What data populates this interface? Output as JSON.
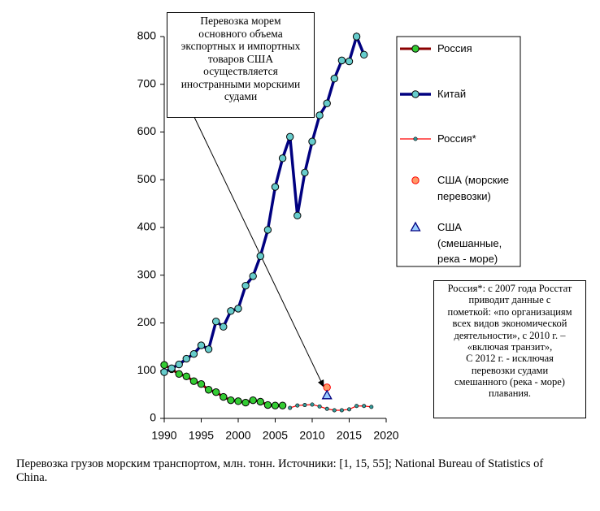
{
  "chart_data": {
    "type": "line",
    "x": [
      1990,
      1991,
      1992,
      1993,
      1994,
      1995,
      1996,
      1997,
      1998,
      1999,
      2000,
      2001,
      2002,
      2003,
      2004,
      2005,
      2006,
      2007,
      2008,
      2009,
      2010,
      2011,
      2012,
      2013,
      2014,
      2015,
      2016,
      2017,
      2018
    ],
    "series": [
      {
        "name": "Россия",
        "color": "#8b0000",
        "marker": "circle",
        "marker_color": "#33cc33",
        "line": true,
        "values": [
          112,
          103,
          93,
          88,
          78,
          72,
          60,
          55,
          45,
          38,
          36,
          33,
          38,
          35,
          28,
          27,
          27,
          null,
          null,
          null,
          null,
          null,
          null,
          null,
          null,
          null,
          null,
          null,
          null
        ]
      },
      {
        "name": "Китай",
        "color": "#000080",
        "marker": "circle",
        "marker_color": "#66cccc",
        "line": true,
        "values": [
          97,
          105,
          113,
          125,
          135,
          153,
          145,
          203,
          192,
          225,
          230,
          278,
          298,
          340,
          395,
          485,
          545,
          590,
          425,
          515,
          580,
          635,
          660,
          712,
          750,
          748,
          800,
          762,
          null
        ]
      },
      {
        "name": "Россия*",
        "color": "#ff0000",
        "marker": "small-circle",
        "marker_color": "#339999",
        "line": true,
        "values": [
          null,
          null,
          null,
          null,
          null,
          null,
          null,
          null,
          null,
          null,
          null,
          null,
          null,
          null,
          null,
          null,
          null,
          22,
          27,
          28,
          29,
          25,
          20,
          17,
          17,
          19,
          26,
          26,
          24
        ]
      },
      {
        "name": "США (морские перевозки)",
        "color": "#ff0000",
        "marker": "circle",
        "marker_color": "#ff9966",
        "line": false,
        "values": [
          null,
          null,
          null,
          null,
          null,
          null,
          null,
          null,
          null,
          null,
          null,
          null,
          null,
          null,
          null,
          null,
          null,
          null,
          null,
          null,
          null,
          null,
          65,
          null,
          null,
          null,
          null,
          null,
          null
        ]
      },
      {
        "name": "США (смешанные, река - море)",
        "color": "#000080",
        "marker": "triangle",
        "marker_color": "#99ccff",
        "line": false,
        "values": [
          null,
          null,
          null,
          null,
          null,
          null,
          null,
          null,
          null,
          null,
          null,
          null,
          null,
          null,
          null,
          null,
          null,
          null,
          null,
          null,
          null,
          null,
          48,
          null,
          null,
          null,
          null,
          null,
          null
        ]
      }
    ],
    "xlim": [
      1990,
      2020
    ],
    "xticks": [
      1990,
      1995,
      2000,
      2005,
      2010,
      2015,
      2020
    ],
    "ylim": [
      0,
      800
    ],
    "yticks": [
      0,
      100,
      200,
      300,
      400,
      500,
      600,
      700,
      800
    ],
    "grid": false,
    "annotation": [
      "Перевозка морем",
      "основного объема",
      "экспортных и импортных",
      "товаров США",
      "осуществляется",
      "иностранными морскими",
      "судами"
    ],
    "note": [
      "Россия*: с 2007 года Росстат",
      "приводит данные  с",
      "пометкой: «по организациям",
      "всех видов экономической",
      "деятельности», с 2010 г. –",
      "«включая транзит»,",
      "С 2012 г. - исключая",
      "перевозки судами",
      "смешанного (река - море)",
      "плавания."
    ],
    "caption": "Перевозка грузов морским транспортом, млн. тонн. Источники: [1, 15, 55]; National Bureau of Statistics of China."
  }
}
